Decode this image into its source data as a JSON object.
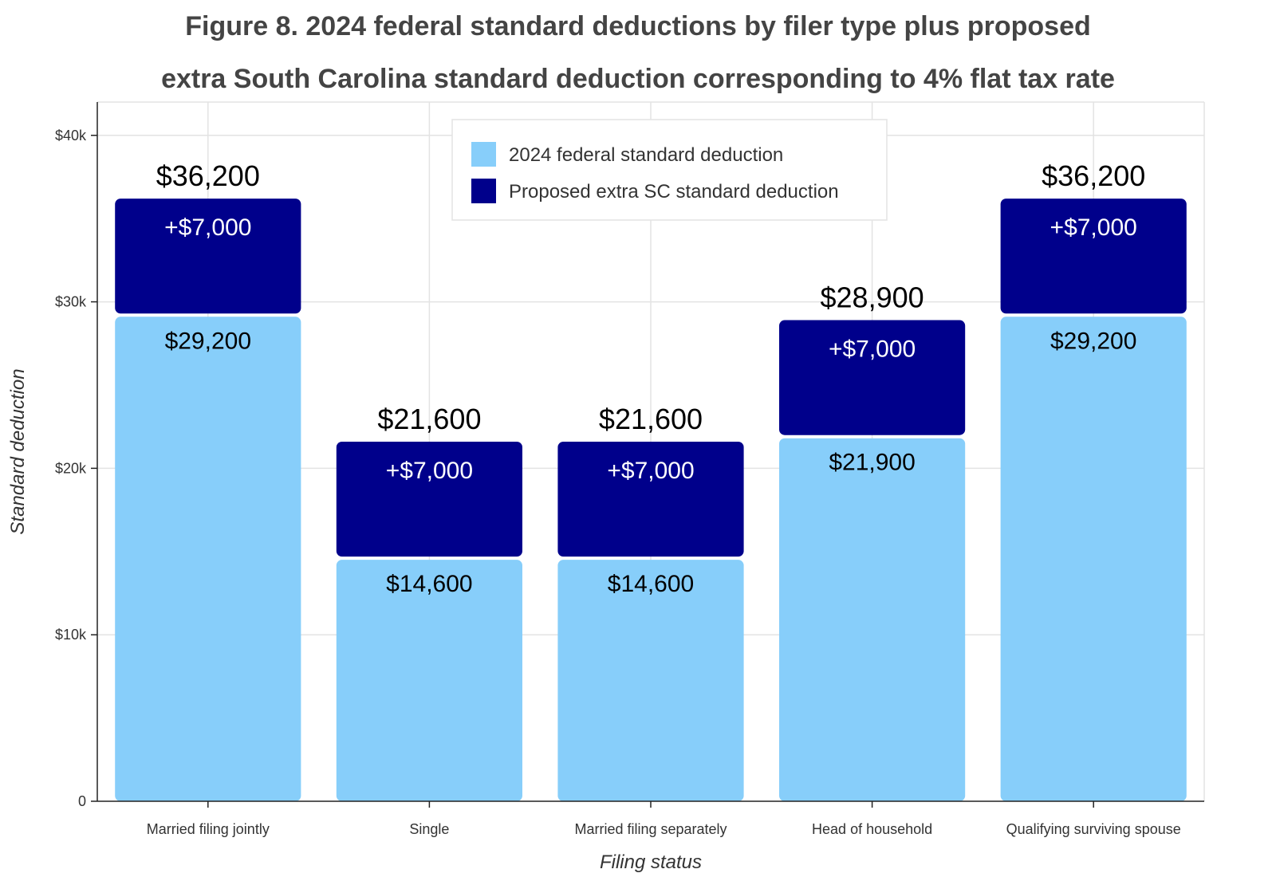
{
  "chart_data": {
    "type": "bar",
    "stacked": true,
    "title": "Figure 8. 2024 federal standard deductions by filer type plus proposed extra South Carolina standard deduction corresponding to 4% flat tax rate",
    "title_lines": [
      "Figure 8. 2024 federal standard deductions by filer type plus proposed",
      "extra South Carolina standard deduction corresponding to 4% flat tax rate"
    ],
    "xlabel": "Filing status",
    "ylabel": "Standard deduction",
    "ylim": [
      0,
      42000
    ],
    "yticks": [
      {
        "value": 0,
        "label": "0"
      },
      {
        "value": 10000,
        "label": "$10k"
      },
      {
        "value": 20000,
        "label": "$20k"
      },
      {
        "value": 30000,
        "label": "$30k"
      },
      {
        "value": 40000,
        "label": "$40k"
      }
    ],
    "grid": true,
    "legend_position": "top-center",
    "categories": [
      "Married filing jointly",
      "Single",
      "Married filing separately",
      "Head of household",
      "Qualifying surviving spouse"
    ],
    "series": [
      {
        "name": "2024 federal standard deduction",
        "color": "#87CEFA",
        "values": [
          29200,
          14600,
          14600,
          21900,
          29200
        ],
        "labels": [
          "$29,200",
          "$14,600",
          "$14,600",
          "$21,900",
          "$29,200"
        ]
      },
      {
        "name": "Proposed extra SC standard deduction",
        "color": "#00008B",
        "values": [
          7000,
          7000,
          7000,
          7000,
          7000
        ],
        "labels": [
          "+$7,000",
          "+$7,000",
          "+$7,000",
          "+$7,000",
          "+$7,000"
        ]
      }
    ],
    "totals": [
      36200,
      21600,
      21600,
      28900,
      36200
    ],
    "total_labels": [
      "$36,200",
      "$21,600",
      "$21,600",
      "$28,900",
      "$36,200"
    ]
  }
}
